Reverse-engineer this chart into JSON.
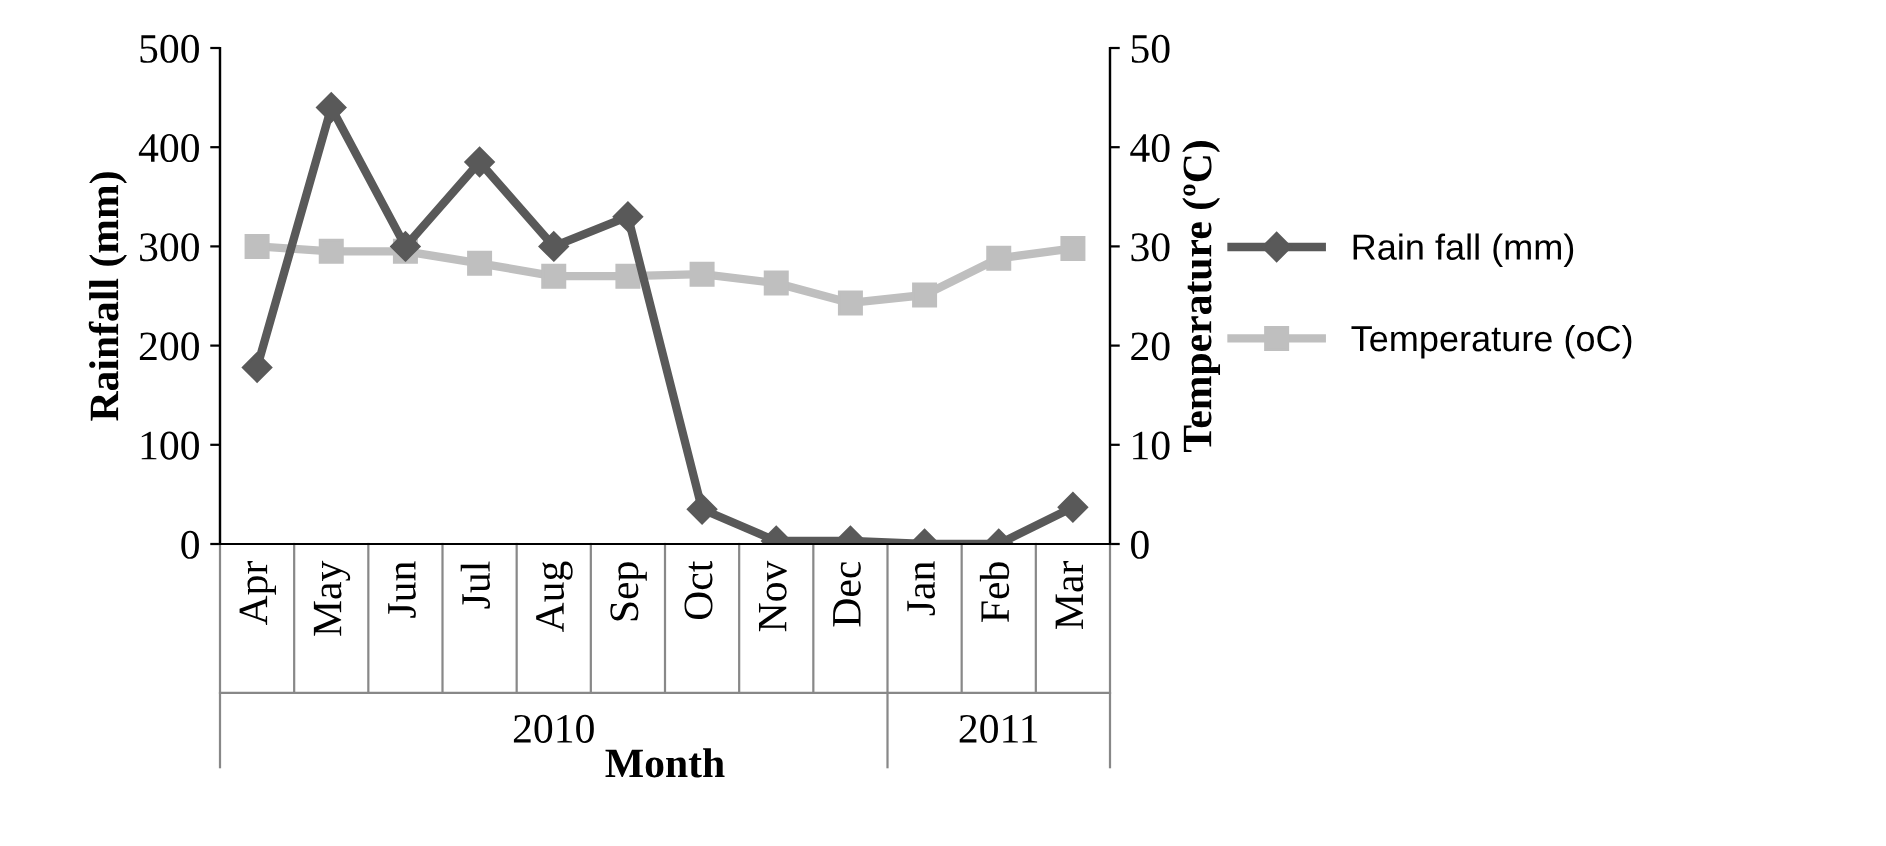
{
  "chart_data": {
    "type": "line",
    "xlabel": "Month",
    "ylabel": "Rainfall (mm)",
    "y2label": "Temperature (ºC)",
    "categories": [
      "Apr",
      "May",
      "Jun",
      "Jul",
      "Aug",
      "Sep",
      "Oct",
      "Nov",
      "Dec",
      "Jan",
      "Feb",
      "Mar"
    ],
    "annotations": [
      "2010",
      "2011"
    ],
    "series": [
      {
        "name": "Rain fall (mm)",
        "color": "#595959",
        "marker": "diamond",
        "values": [
          178,
          440,
          300,
          385,
          300,
          330,
          35,
          3,
          3,
          0,
          0,
          37
        ]
      },
      {
        "name": "Temperature (oC)",
        "color": "#bfbfbf",
        "marker": "square",
        "axis": "y2",
        "values": [
          30,
          29.5,
          29.5,
          28.3,
          27,
          27,
          27.2,
          26.3,
          24.3,
          25.1,
          28.8,
          29.8
        ]
      }
    ],
    "ylim": [
      0,
      500
    ],
    "yticks": [
      0,
      100,
      200,
      300,
      400,
      500
    ],
    "y2lim": [
      0,
      50
    ],
    "y2ticks": [
      0,
      10,
      20,
      30,
      40,
      50
    ],
    "grid": false,
    "legend": "right"
  }
}
